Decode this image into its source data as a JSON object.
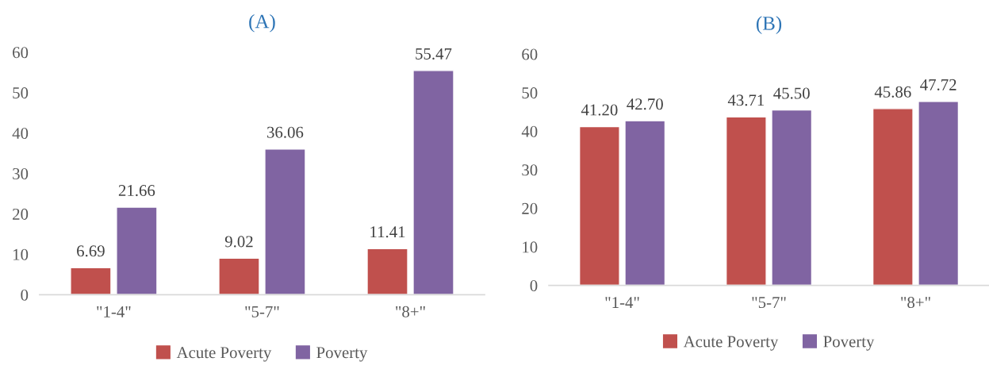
{
  "chart_data": [
    {
      "type": "bar",
      "title": "(A)",
      "categories": [
        "\"1-4\"",
        "\"5-7\"",
        "\"8+\""
      ],
      "ylim": [
        0,
        60
      ],
      "yticks": [
        0,
        10,
        20,
        30,
        40,
        50,
        60
      ],
      "grid": false,
      "legend": "bottom",
      "series": [
        {
          "name": "Acute Poverty",
          "color": "#c0504d",
          "values": [
            6.69,
            9.02,
            11.41
          ],
          "value_labels": [
            "6.69",
            "9.02",
            "11.41"
          ]
        },
        {
          "name": "Poverty",
          "color": "#8064a2",
          "values": [
            21.66,
            36.06,
            55.47
          ],
          "value_labels": [
            "21.66",
            "36.06",
            "55.47"
          ]
        }
      ]
    },
    {
      "type": "bar",
      "title": "(B)",
      "categories": [
        "\"1-4\"",
        "\"5-7\"",
        "\"8+\""
      ],
      "ylim": [
        0,
        60
      ],
      "yticks": [
        0,
        10,
        20,
        30,
        40,
        50,
        60
      ],
      "grid": false,
      "legend": "bottom",
      "series": [
        {
          "name": "Acute Poverty",
          "color": "#c0504d",
          "values": [
            41.2,
            43.71,
            45.86
          ],
          "value_labels": [
            "41.20",
            "43.71",
            "45.86"
          ]
        },
        {
          "name": "Poverty",
          "color": "#8064a2",
          "values": [
            42.7,
            45.5,
            47.72
          ],
          "value_labels": [
            "42.70",
            "45.50",
            "47.72"
          ]
        }
      ]
    }
  ]
}
